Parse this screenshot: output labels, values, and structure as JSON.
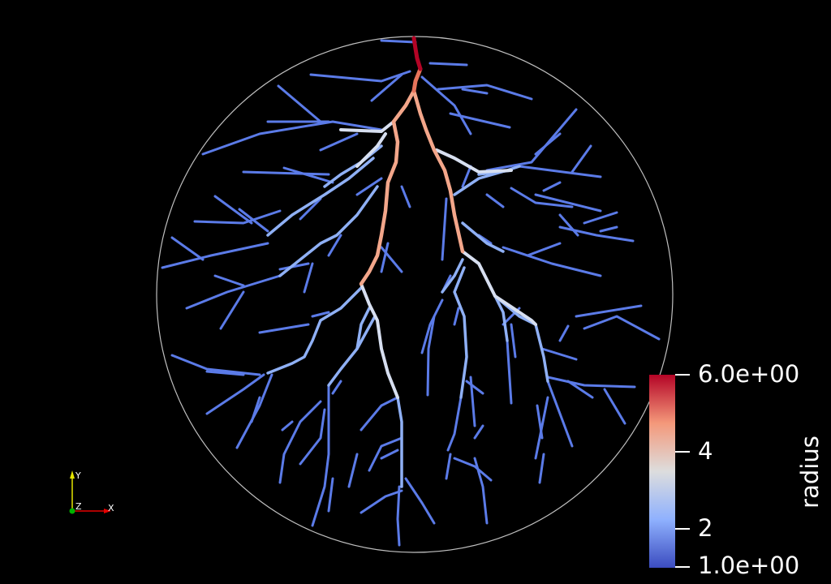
{
  "colorbar": {
    "title": "radius",
    "max_label": "6.0e+00",
    "min_label": "1.0e+00",
    "tick_labels": [
      "4",
      "2"
    ],
    "range": [
      1.0,
      6.0
    ],
    "colormap": [
      "#3b4cc0",
      "#6f92f3",
      "#aac7fd",
      "#dddddd",
      "#f7b89c",
      "#e7745b",
      "#b40426"
    ]
  },
  "orientation_axes": {
    "y_label": "Y",
    "z_label": "Z",
    "x_label": "X",
    "y_color": "#e6e600",
    "x_color": "#e60000",
    "z_color": "#00b300"
  },
  "domain_outline_color": "#bfbfbf",
  "background": "#000000"
}
